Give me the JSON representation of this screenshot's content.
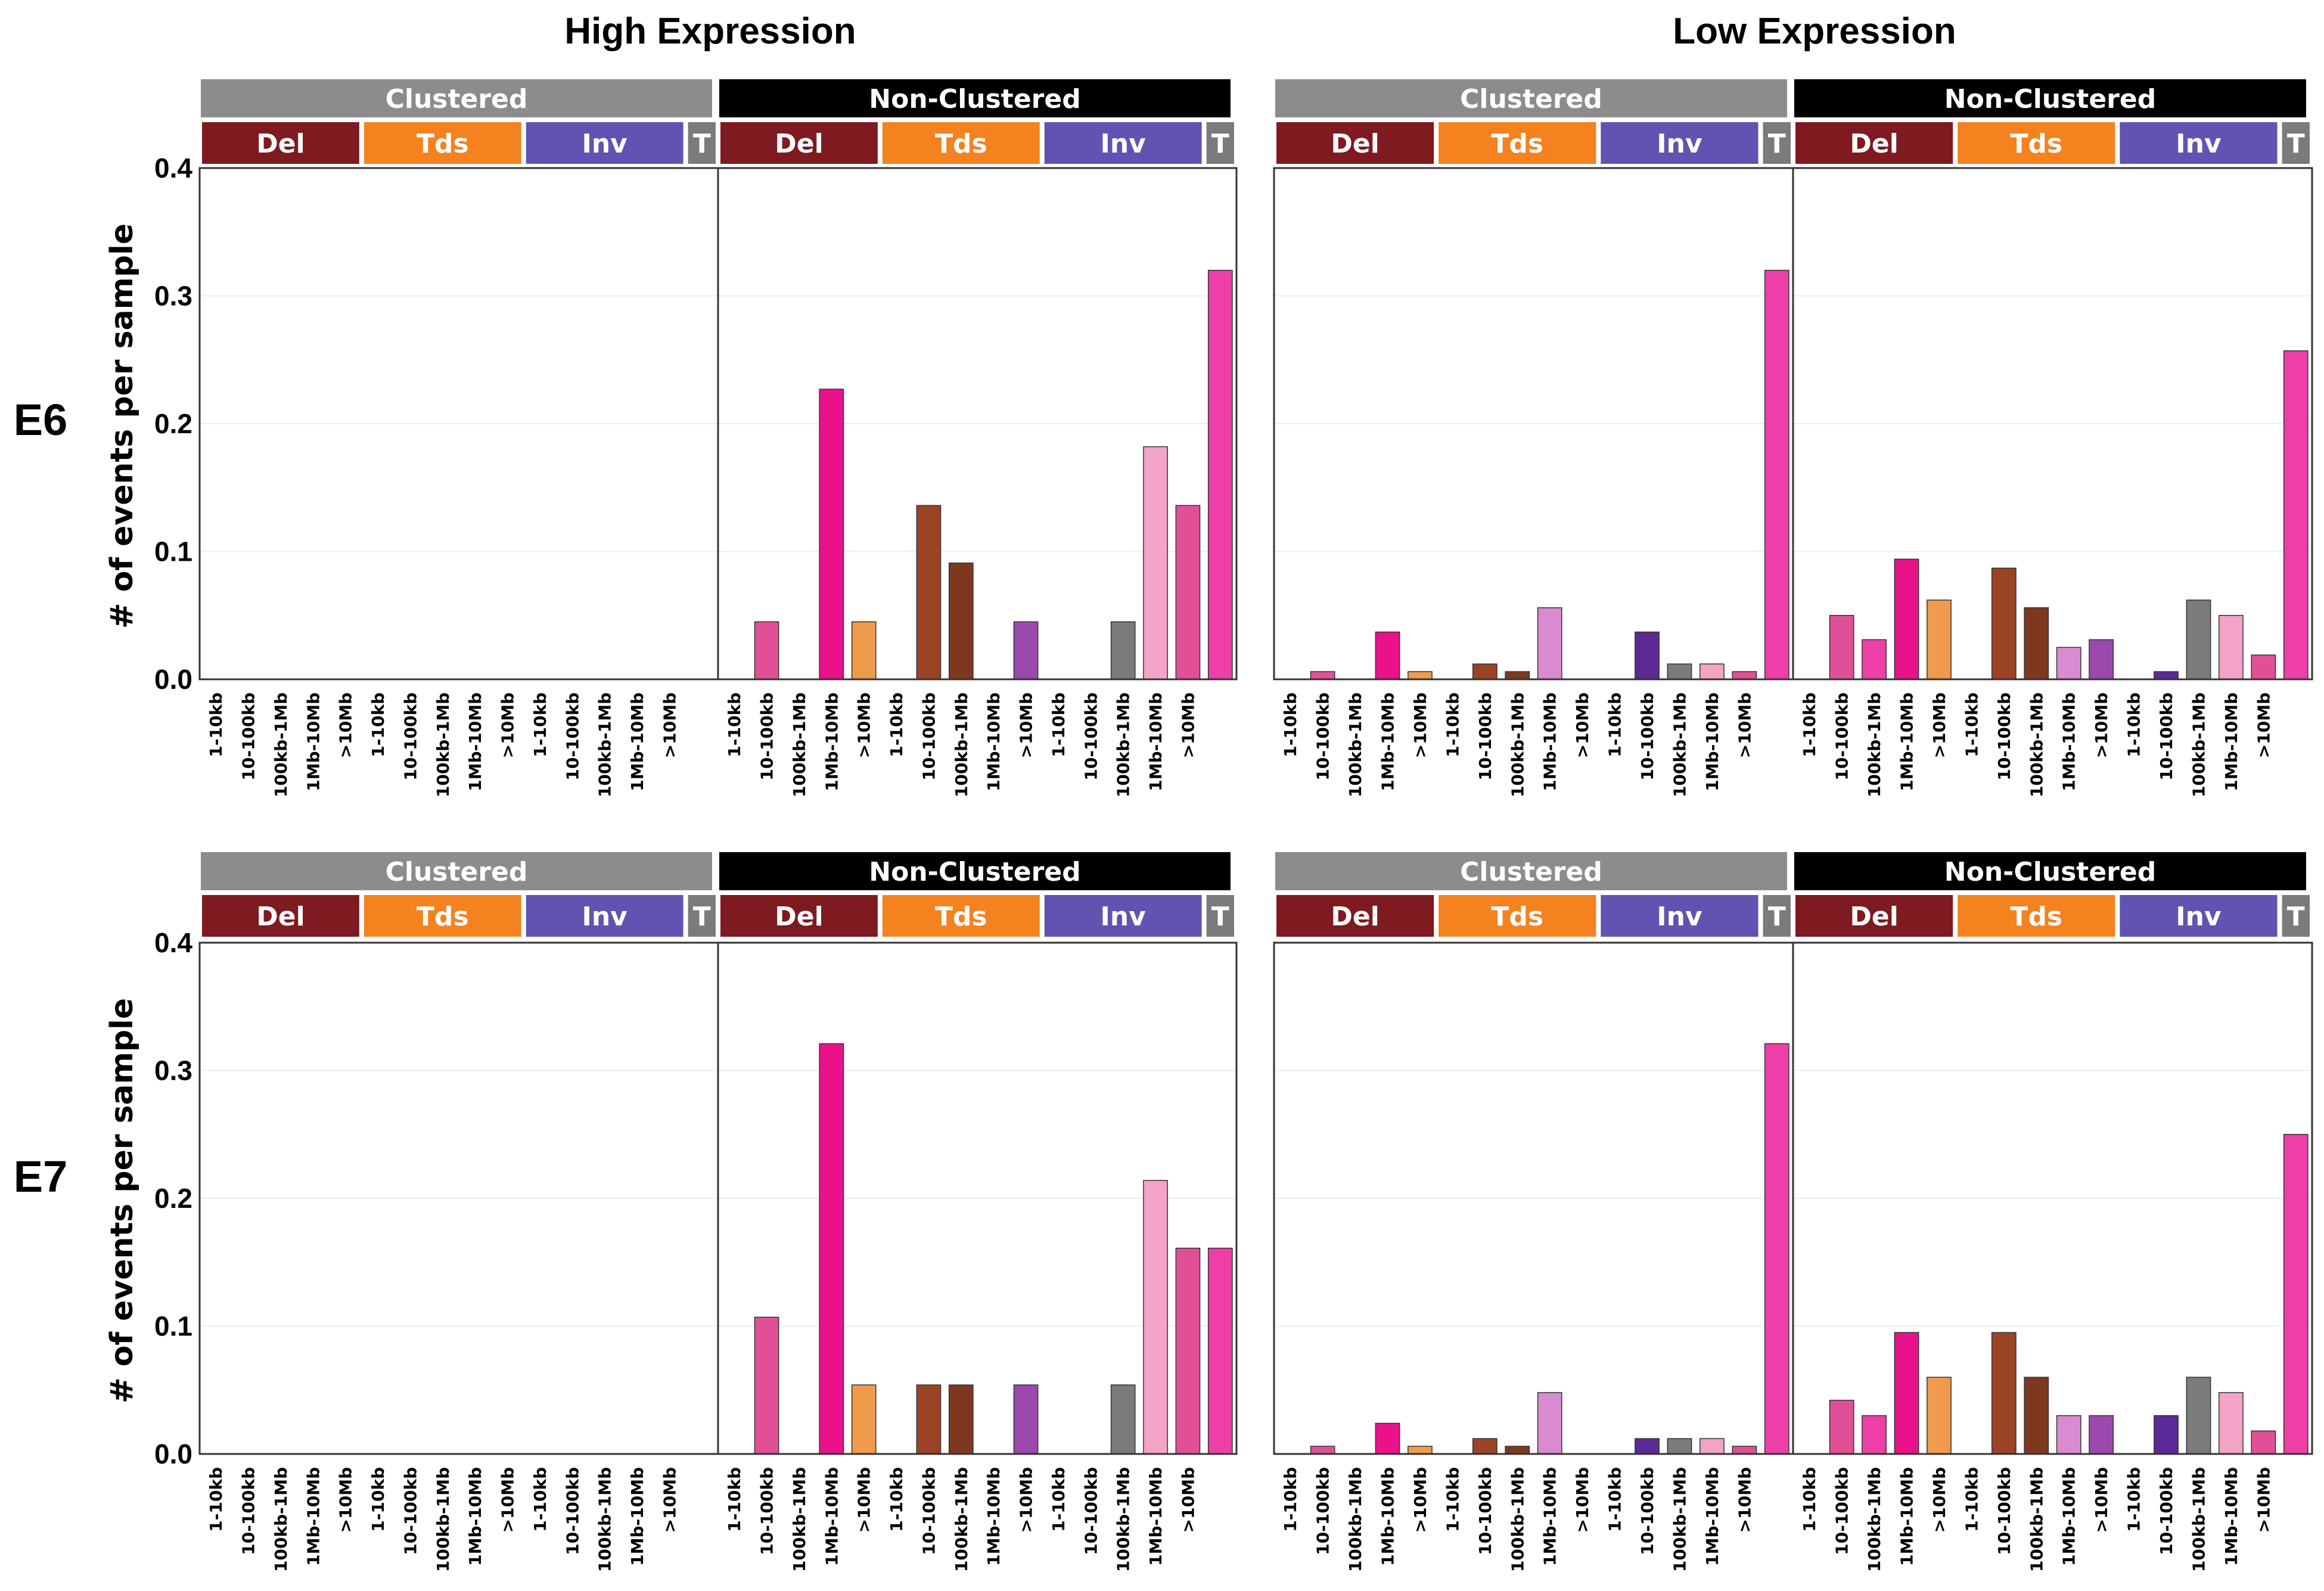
{
  "column_titles": [
    "High Expression",
    "Low Expression"
  ],
  "row_labels": [
    "E6",
    "E7"
  ],
  "ylabel": "# of events per sample",
  "strip_labels": {
    "clustered": "Clustered",
    "non_clustered": "Non-Clustered"
  },
  "category_labels": {
    "del": "Del",
    "tds": "Tds",
    "inv": "Inv",
    "t": "T"
  },
  "colors": {
    "clustered_strip": "#8c8c8c",
    "non_clustered_strip": "#000000",
    "del": "#7e1a20",
    "tds": "#f4821f",
    "inv": "#6153b1",
    "t": "#7b7b7b",
    "bar_palette": [
      "#f3a3c5",
      "#e15096",
      "#ee3fa8",
      "#ea128a",
      "#f09a4d",
      "#cd7a32",
      "#9b4327",
      "#7f3820",
      "#d88bd0",
      "#9b49ad",
      "#6e3fa0",
      "#5b2a97",
      "#7b7b7b"
    ]
  },
  "chart_data": [
    {
      "type": "bar",
      "panel": "E6 / High Expression",
      "ylim": [
        0,
        0.4
      ],
      "yticks": [
        0.0,
        0.1,
        0.2,
        0.3,
        0.4
      ],
      "grid": true,
      "facets": [
        "Clustered",
        "Non-Clustered"
      ],
      "categories": [
        "1-10kb",
        "10-100kb",
        "100kb-1Mb",
        "1Mb-10Mb",
        ">10Mb",
        "1-10kb",
        "10-100kb",
        "100kb-1Mb",
        "1Mb-10Mb",
        ">10Mb",
        "1-10kb",
        "10-100kb",
        "100kb-1Mb",
        "1Mb-10Mb",
        ">10Mb",
        "T"
      ],
      "series": [
        {
          "facet": "Clustered",
          "values": [
            0,
            0,
            0,
            0,
            0,
            0,
            0,
            0,
            0,
            0,
            0,
            0,
            0,
            0,
            0,
            0
          ]
        },
        {
          "facet": "Non-Clustered",
          "values": [
            0,
            0.045,
            0,
            0.227,
            0.045,
            0,
            0.136,
            0.091,
            0,
            0.045,
            0,
            0,
            0.045,
            0.182,
            0.136,
            0.32
          ]
        }
      ]
    },
    {
      "type": "bar",
      "panel": "E6 / Low Expression",
      "ylim": [
        0,
        0.4
      ],
      "yticks": [
        0.0,
        0.1,
        0.2,
        0.3,
        0.4
      ],
      "grid": true,
      "facets": [
        "Clustered",
        "Non-Clustered"
      ],
      "categories": [
        "1-10kb",
        "10-100kb",
        "100kb-1Mb",
        "1Mb-10Mb",
        ">10Mb",
        "1-10kb",
        "10-100kb",
        "100kb-1Mb",
        "1Mb-10Mb",
        ">10Mb",
        "1-10kb",
        "10-100kb",
        "100kb-1Mb",
        "1Mb-10Mb",
        ">10Mb",
        "T"
      ],
      "series": [
        {
          "facet": "Clustered",
          "values": [
            0,
            0.006,
            0,
            0.037,
            0.006,
            0,
            0.012,
            0.006,
            0.056,
            0,
            0,
            0.037,
            0.012,
            0.012,
            0.006,
            0.32
          ]
        },
        {
          "facet": "Non-Clustered",
          "values": [
            0,
            0.05,
            0.031,
            0.094,
            0.062,
            0,
            0.087,
            0.056,
            0.025,
            0.031,
            0,
            0.006,
            0.062,
            0.05,
            0.019,
            0.257
          ]
        }
      ]
    },
    {
      "type": "bar",
      "panel": "E7 / High Expression",
      "ylim": [
        0,
        0.4
      ],
      "yticks": [
        0.0,
        0.1,
        0.2,
        0.3,
        0.4
      ],
      "grid": true,
      "facets": [
        "Clustered",
        "Non-Clustered"
      ],
      "categories": [
        "1-10kb",
        "10-100kb",
        "100kb-1Mb",
        "1Mb-10Mb",
        ">10Mb",
        "1-10kb",
        "10-100kb",
        "100kb-1Mb",
        "1Mb-10Mb",
        ">10Mb",
        "1-10kb",
        "10-100kb",
        "100kb-1Mb",
        "1Mb-10Mb",
        ">10Mb",
        "T"
      ],
      "series": [
        {
          "facet": "Clustered",
          "values": [
            0,
            0,
            0,
            0,
            0,
            0,
            0,
            0,
            0,
            0,
            0,
            0,
            0,
            0,
            0,
            0
          ]
        },
        {
          "facet": "Non-Clustered",
          "values": [
            0,
            0.107,
            0,
            0.321,
            0.054,
            0,
            0.054,
            0.054,
            0,
            0.054,
            0,
            0,
            0.054,
            0.214,
            0.161,
            0.161
          ]
        }
      ]
    },
    {
      "type": "bar",
      "panel": "E7 / Low Expression",
      "ylim": [
        0,
        0.4
      ],
      "yticks": [
        0.0,
        0.1,
        0.2,
        0.3,
        0.4
      ],
      "grid": true,
      "facets": [
        "Clustered",
        "Non-Clustered"
      ],
      "categories": [
        "1-10kb",
        "10-100kb",
        "100kb-1Mb",
        "1Mb-10Mb",
        ">10Mb",
        "1-10kb",
        "10-100kb",
        "100kb-1Mb",
        "1Mb-10Mb",
        ">10Mb",
        "1-10kb",
        "10-100kb",
        "100kb-1Mb",
        "1Mb-10Mb",
        ">10Mb",
        "T"
      ],
      "series": [
        {
          "facet": "Clustered",
          "values": [
            0,
            0.006,
            0,
            0.024,
            0.006,
            0,
            0.012,
            0.006,
            0.048,
            0,
            0,
            0.012,
            0.012,
            0.012,
            0.006,
            0.321
          ]
        },
        {
          "facet": "Non-Clustered",
          "values": [
            0,
            0.042,
            0.03,
            0.095,
            0.06,
            0,
            0.095,
            0.06,
            0.03,
            0.03,
            0,
            0.03,
            0.06,
            0.048,
            0.018,
            0.25
          ]
        }
      ]
    }
  ]
}
